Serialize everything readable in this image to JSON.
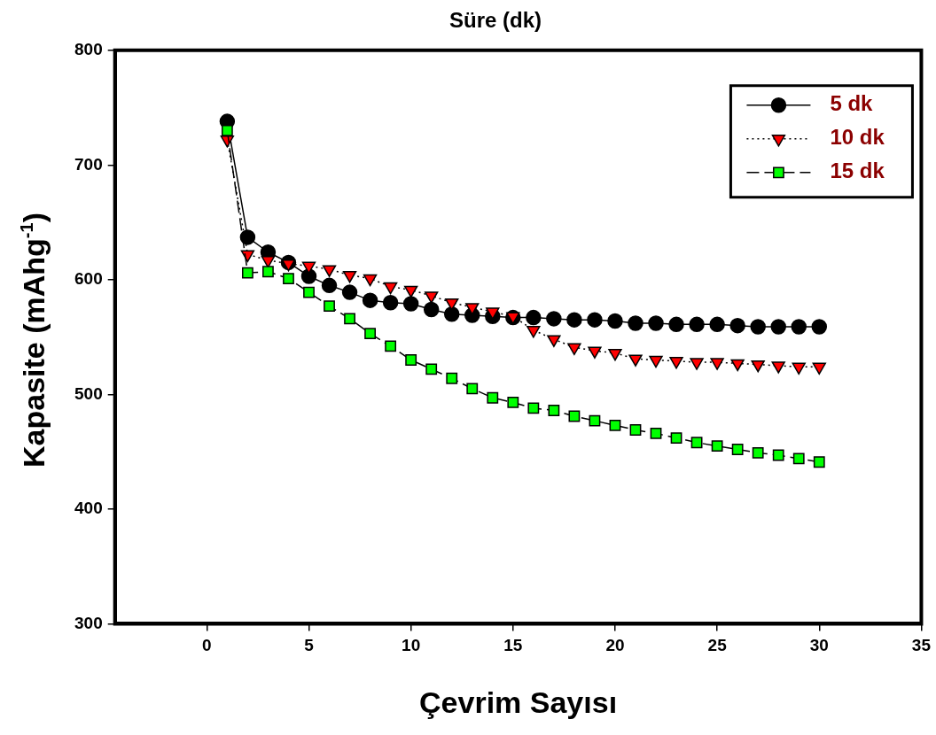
{
  "chart_data": {
    "type": "line",
    "title": "Süre (dk)",
    "xlabel": "Çevrim Sayısı",
    "ylabel": "Kapasite (mAhg$^{-1}$)",
    "x": [
      1,
      2,
      3,
      4,
      5,
      6,
      7,
      8,
      9,
      10,
      11,
      12,
      13,
      14,
      15,
      16,
      17,
      18,
      19,
      20,
      21,
      22,
      23,
      24,
      25,
      26,
      27,
      28,
      29,
      30
    ],
    "xlim": [
      -4.5,
      35
    ],
    "xticks": [
      0,
      5,
      10,
      15,
      20,
      25,
      30,
      35
    ],
    "ylim": [
      300,
      800
    ],
    "yticks": [
      300,
      400,
      500,
      600,
      700,
      800
    ],
    "grid": false,
    "legend": "top right",
    "series": [
      {
        "name": "5 dk",
        "color": "#000000",
        "marker": "circle",
        "line_style": "solid",
        "values": [
          738,
          637,
          624,
          615,
          603,
          595,
          589,
          582,
          580,
          579,
          574,
          570,
          569,
          568,
          567,
          567,
          566,
          565,
          565,
          564,
          562,
          562,
          561,
          561,
          561,
          560,
          559,
          559,
          559,
          559
        ]
      },
      {
        "name": "10 dk",
        "color": "#ff0000",
        "marker": "triangle",
        "line_style": "dotted",
        "values": [
          722,
          622,
          617,
          614,
          612,
          609,
          604,
          601,
          594,
          591,
          586,
          580,
          576,
          572,
          568,
          556,
          548,
          541,
          538,
          536,
          531,
          530,
          529,
          528,
          528,
          527,
          526,
          525,
          524,
          524
        ]
      },
      {
        "name": "15 dk",
        "color": "#00ff00",
        "marker": "square",
        "line_style": "dashed",
        "values": [
          730,
          606,
          607,
          601,
          589,
          577,
          566,
          553,
          542,
          530,
          522,
          514,
          505,
          497,
          493,
          488,
          486,
          481,
          477,
          473,
          469,
          466,
          462,
          458,
          455,
          452,
          449,
          447,
          444,
          441
        ]
      }
    ]
  }
}
